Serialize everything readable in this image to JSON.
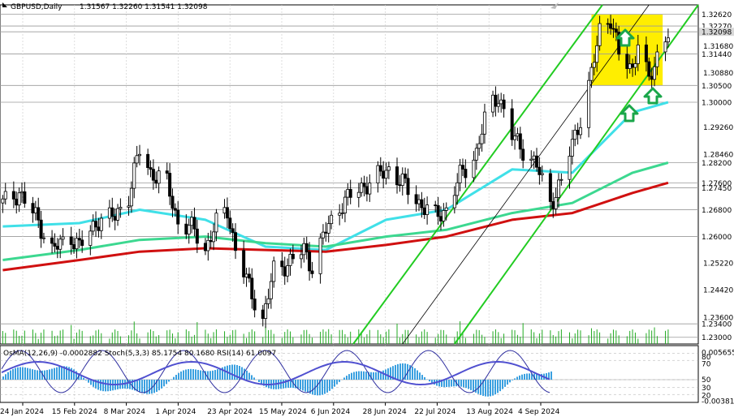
{
  "header": {
    "symbol": "GBPUSD,Daily",
    "ohlc": "1.31567 1.32260 1.31541 1.32098",
    "indicator_caption": "OsMA(12,26,9) -0.0002882  Stoch(5,3,3) 85.1754 80.1680  RSI(14) 61.0097"
  },
  "colors": {
    "candle": "#000000",
    "ma_cyan": "#40e0e8",
    "ma_mediumseagreen": "#3cd890",
    "ma_red": "#d01010",
    "channel": "#22cc22",
    "zone": "#ffee00",
    "arrow": "#1aa64a",
    "osma": "#3aa0e0",
    "stoch": "#3030a0",
    "rsi": "#5050d0"
  },
  "icons": [
    "up-arrow-icon",
    "up-arrow-icon",
    "up-arrow-icon",
    "chart-corner-arrow-icon"
  ],
  "chart_data": [
    {
      "type": "candlestick",
      "title": "GBPUSD,Daily",
      "ylim": [
        1.228,
        1.329
      ],
      "price_levels": [
        {
          "value": 1.3262,
          "label": "1.32620"
        },
        {
          "value": 1.3227,
          "label": "1.32270"
        },
        {
          "value": 1.32098,
          "label": "1.32098"
        },
        {
          "value": 1.3144,
          "label": "1.31440"
        },
        {
          "value": 1.305,
          "label": "1.30500"
        },
        {
          "value": 1.3,
          "label": "1.30000"
        },
        {
          "value": 1.282,
          "label": "1.28200"
        },
        {
          "value": 1.276,
          "label": "1.27600"
        },
        {
          "value": 1.2745,
          "label": "1.27450"
        },
        {
          "value": 1.268,
          "label": "1.26800"
        },
        {
          "value": 1.26,
          "label": "1.26000"
        },
        {
          "value": 1.234,
          "label": "1.23400"
        },
        {
          "value": 1.23,
          "label": "1.23000"
        }
      ],
      "y_ticks": [
        {
          "value": 1.3168,
          "label": "1.31680"
        },
        {
          "value": 1.3088,
          "label": "1.30880"
        },
        {
          "value": 1.2926,
          "label": "1.29260"
        },
        {
          "value": 1.2846,
          "label": "1.28460"
        },
        {
          "value": 1.2522,
          "label": "1.25220"
        },
        {
          "value": 1.2442,
          "label": "1.24420"
        },
        {
          "value": 1.236,
          "label": "1.23600"
        }
      ],
      "x_tick_labels": [
        "24 Jan 2024",
        "15 Feb 2024",
        "8 Mar 2024",
        "1 Apr 2024",
        "23 Apr 2024",
        "15 May 2024",
        "6 Jun 2024",
        "28 Jun 2024",
        "22 Jul 2024",
        "13 Aug 2024",
        "4 Sep 2024"
      ],
      "zone": {
        "x_from": "2024-08-20",
        "x_to": "2024-09-15",
        "y_from": 1.305,
        "y_to": 1.3262
      },
      "close_path": [
        [
          "2024-01-18",
          1.27
        ],
        [
          "2024-01-24",
          1.273
        ],
        [
          "2024-01-30",
          1.266
        ],
        [
          "2024-02-05",
          1.256
        ],
        [
          "2024-02-12",
          1.26
        ],
        [
          "2024-02-15",
          1.257
        ],
        [
          "2024-02-22",
          1.265
        ],
        [
          "2024-02-28",
          1.266
        ],
        [
          "2024-03-04",
          1.272
        ],
        [
          "2024-03-08",
          1.286
        ],
        [
          "2024-03-12",
          1.279
        ],
        [
          "2024-03-18",
          1.276
        ],
        [
          "2024-03-22",
          1.264
        ],
        [
          "2024-03-28",
          1.262
        ],
        [
          "2024-04-01",
          1.256
        ],
        [
          "2024-04-05",
          1.264
        ],
        [
          "2024-04-09",
          1.268
        ],
        [
          "2024-04-12",
          1.256
        ],
        [
          "2024-04-16",
          1.247
        ],
        [
          "2024-04-22",
          1.235
        ],
        [
          "2024-04-26",
          1.25
        ],
        [
          "2024-05-01",
          1.252
        ],
        [
          "2024-05-07",
          1.256
        ],
        [
          "2024-05-10",
          1.251
        ],
        [
          "2024-05-15",
          1.262
        ],
        [
          "2024-05-21",
          1.27
        ],
        [
          "2024-05-27",
          1.274
        ],
        [
          "2024-06-03",
          1.278
        ],
        [
          "2024-06-07",
          1.28
        ],
        [
          "2024-06-12",
          1.276
        ],
        [
          "2024-06-18",
          1.27
        ],
        [
          "2024-06-24",
          1.266
        ],
        [
          "2024-06-28",
          1.268
        ],
        [
          "2024-07-03",
          1.278
        ],
        [
          "2024-07-09",
          1.285
        ],
        [
          "2024-07-13",
          1.298
        ],
        [
          "2024-07-17",
          1.302
        ],
        [
          "2024-07-22",
          1.29
        ],
        [
          "2024-07-26",
          1.286
        ],
        [
          "2024-07-31",
          1.281
        ],
        [
          "2024-08-05",
          1.27
        ],
        [
          "2024-08-09",
          1.276
        ],
        [
          "2024-08-13",
          1.288
        ],
        [
          "2024-08-16",
          1.295
        ],
        [
          "2024-08-20",
          1.308
        ],
        [
          "2024-08-23",
          1.322
        ],
        [
          "2024-08-27",
          1.325
        ],
        [
          "2024-08-30",
          1.314
        ],
        [
          "2024-09-04",
          1.31
        ],
        [
          "2024-09-06",
          1.318
        ],
        [
          "2024-09-10",
          1.306
        ],
        [
          "2024-09-13",
          1.314
        ],
        [
          "2024-09-17",
          1.321
        ]
      ],
      "moving_averages": [
        {
          "color_key": "ma_cyan",
          "points": [
            [
              "2024-01-18",
              1.263
            ],
            [
              "2024-02-15",
              1.264
            ],
            [
              "2024-03-08",
              1.268
            ],
            [
              "2024-04-01",
              1.265
            ],
            [
              "2024-04-23",
              1.257
            ],
            [
              "2024-05-15",
              1.256
            ],
            [
              "2024-06-06",
              1.265
            ],
            [
              "2024-06-28",
              1.268
            ],
            [
              "2024-07-22",
              1.28
            ],
            [
              "2024-08-13",
              1.279
            ],
            [
              "2024-09-04",
              1.297
            ],
            [
              "2024-09-17",
              1.3
            ]
          ]
        },
        {
          "color_key": "ma_mediumseagreen",
          "points": [
            [
              "2024-01-18",
              1.253
            ],
            [
              "2024-02-15",
              1.256
            ],
            [
              "2024-03-08",
              1.259
            ],
            [
              "2024-04-01",
              1.26
            ],
            [
              "2024-04-23",
              1.258
            ],
            [
              "2024-05-15",
              1.257
            ],
            [
              "2024-06-06",
              1.26
            ],
            [
              "2024-06-28",
              1.262
            ],
            [
              "2024-07-22",
              1.267
            ],
            [
              "2024-08-13",
              1.27
            ],
            [
              "2024-09-04",
              1.279
            ],
            [
              "2024-09-17",
              1.282
            ]
          ]
        },
        {
          "color_key": "ma_red",
          "points": [
            [
              "2024-01-18",
              1.25
            ],
            [
              "2024-02-15",
              1.253
            ],
            [
              "2024-03-08",
              1.2555
            ],
            [
              "2024-04-01",
              1.2565
            ],
            [
              "2024-04-23",
              1.256
            ],
            [
              "2024-05-15",
              1.2555
            ],
            [
              "2024-06-06",
              1.2575
            ],
            [
              "2024-06-28",
              1.26
            ],
            [
              "2024-07-22",
              1.265
            ],
            [
              "2024-08-13",
              1.267
            ],
            [
              "2024-09-04",
              1.273
            ],
            [
              "2024-09-17",
              1.276
            ]
          ]
        }
      ],
      "channel_lines": [
        {
          "from": [
            "2024-05-25",
            1.228
          ],
          "to": [
            "2024-08-24",
            1.329
          ]
        },
        {
          "from": [
            "2024-07-01",
            1.228
          ],
          "to": [
            "2024-09-28",
            1.329
          ]
        },
        {
          "from": [
            "2024-06-12",
            1.228
          ],
          "to": [
            "2024-09-10",
            1.329
          ]
        }
      ]
    },
    {
      "type": "oscillator",
      "title": "OsMA(12,26,9) Stoch(5,3,3) RSI(14)",
      "ylim": [
        -0.004,
        0.006
      ],
      "axis_labels": [
        {
          "value": 0.0056554,
          "label": "0.005655"
        },
        {
          "value": -0.003819,
          "label": "-0.003819"
        }
      ],
      "level_labels": [
        "80",
        "70",
        "50",
        "30",
        "20"
      ]
    }
  ]
}
